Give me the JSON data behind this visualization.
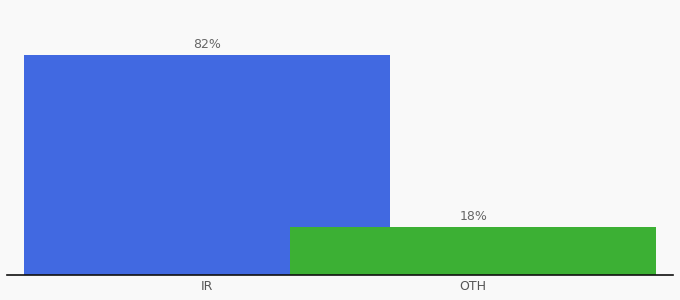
{
  "categories": [
    "IR",
    "OTH"
  ],
  "values": [
    82,
    18
  ],
  "bar_colors": [
    "#4169E1",
    "#3CB034"
  ],
  "labels": [
    "82%",
    "18%"
  ],
  "background_color": "#f9f9f9",
  "ylim": [
    0,
    100
  ],
  "label_fontsize": 9,
  "tick_fontsize": 9,
  "bar_width": 0.55,
  "bar_positions": [
    0.3,
    0.7
  ]
}
